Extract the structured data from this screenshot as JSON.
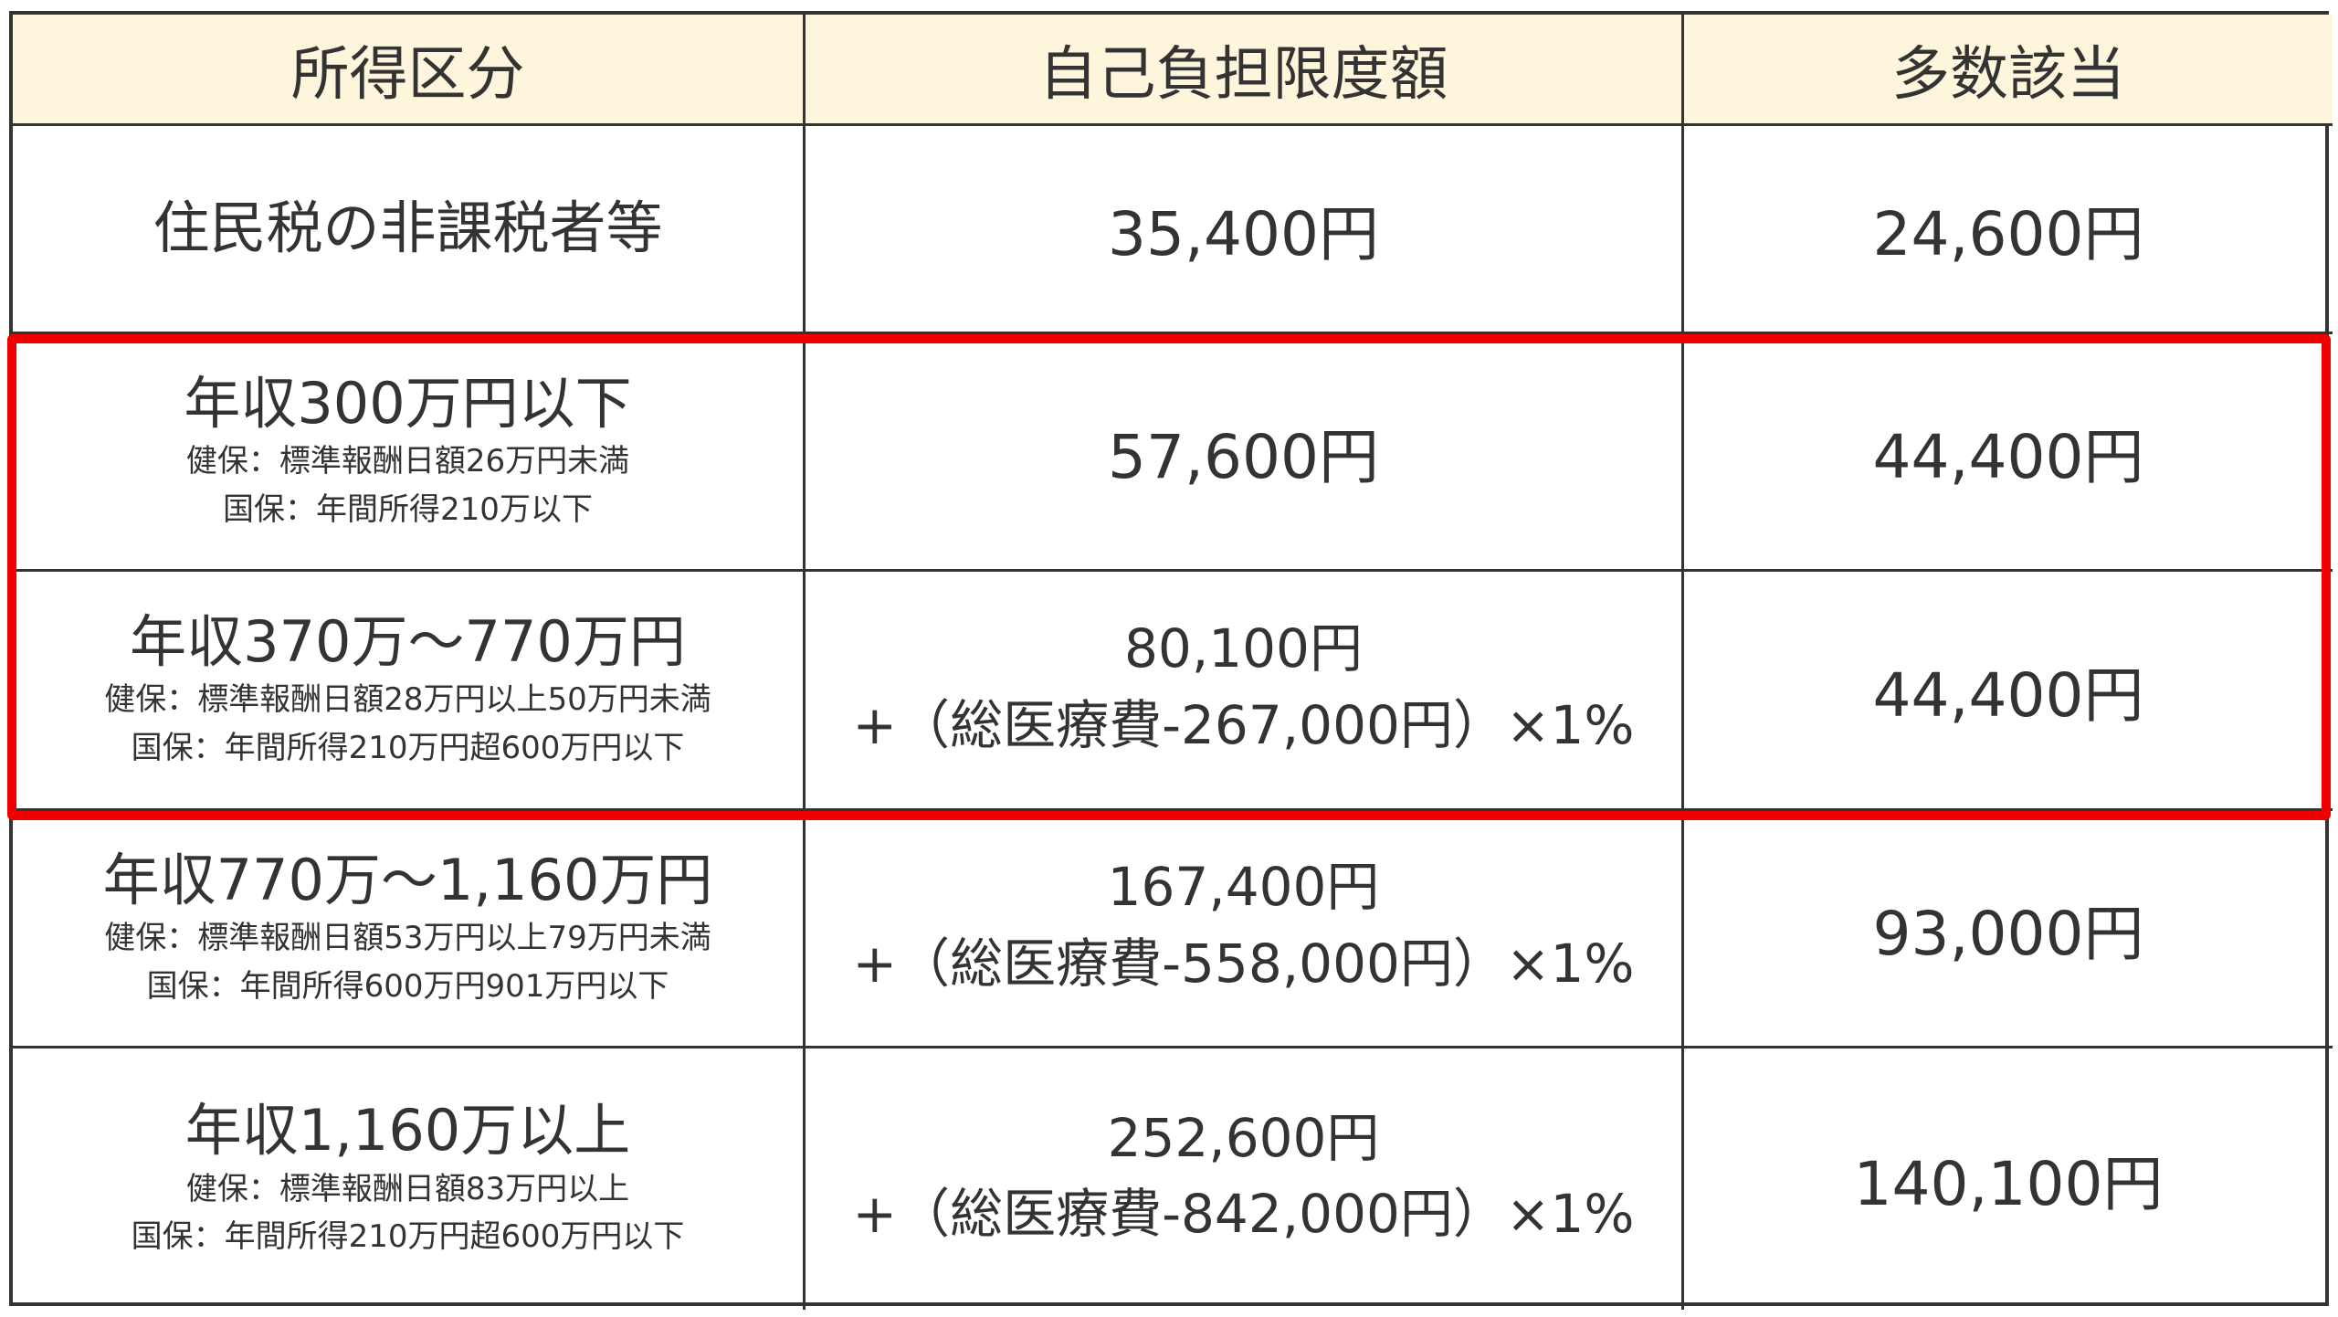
{
  "header": {
    "col1": "所得区分",
    "col2": "自己負担限度額",
    "col3": "多数該当"
  },
  "rows": [
    {
      "category": "住民税の非課税者等",
      "kenpo": "",
      "kokuho": "",
      "limit_line1": "35,400円",
      "limit_line2": "",
      "multiple": "24,600円"
    },
    {
      "category": "年収300万円以下",
      "kenpo": "健保：標準報酬日額26万円未満",
      "kokuho": "国保：年間所得210万以下",
      "limit_line1": "57,600円",
      "limit_line2": "",
      "multiple": "44,400円"
    },
    {
      "category": "年収370万～770万円",
      "kenpo": "健保：標準報酬日額28万円以上50万円未満",
      "kokuho": "国保：年間所得210万円超600万円以下",
      "limit_line1": "80,100円",
      "limit_line2": "+（総医療費-267,000円）×1%",
      "multiple": "44,400円"
    },
    {
      "category": "年収770万～1,160万円",
      "kenpo": "健保：標準報酬日額53万円以上79万円未満",
      "kokuho": "国保：年間所得600万円901万円以下",
      "limit_line1": "167,400円",
      "limit_line2": "+（総医療費-558,000円）×1%",
      "multiple": "93,000円"
    },
    {
      "category": "年収1,160万以上",
      "kenpo": "健保：標準報酬日額83万円以上",
      "kokuho": "国保：年間所得210万円超600万円以下",
      "limit_line1": "252,600円",
      "limit_line2": "+（総医療費-842,000円）×1%",
      "multiple": "140,100円"
    }
  ],
  "highlight_color": "#ee0000",
  "header_bg": "#fdf6dc"
}
